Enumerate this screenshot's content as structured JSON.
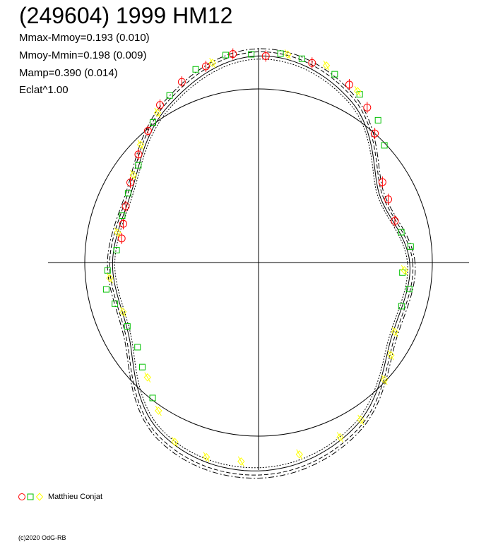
{
  "title": "(249604) 1999 HM12",
  "stats": [
    "Mmax-Mmoy=0.193 (0.010)",
    "Mmoy-Mmin=0.198 (0.009)",
    "Mamp=0.390 (0.014)",
    "Eclat^1.00"
  ],
  "legend": {
    "label": "Matthieu Conjat"
  },
  "copyright": "(c)2020 OdG-RB",
  "colors": {
    "circle": "#ff0000",
    "square": "#00c000",
    "diamond": "#ffff00",
    "curve": "#000000"
  },
  "chart_data": {
    "type": "scatter",
    "polar": true,
    "reference_circle_radius": 1.0,
    "markers": [
      "circle",
      "square",
      "diamond"
    ],
    "grid": false,
    "legend_position": "bottom-left",
    "fit_curve": {
      "angle_deg": [
        0,
        30,
        60,
        90,
        120,
        150,
        180,
        210,
        240,
        270,
        300,
        330
      ],
      "radius": [
        0.87,
        0.8,
        1.07,
        1.19,
        1.04,
        0.84,
        0.84,
        0.86,
        1.13,
        1.2,
        1.1,
        0.88
      ]
    },
    "points": [
      {
        "a": 88,
        "r": 1.19,
        "m": "circle"
      },
      {
        "a": 97,
        "r": 1.21,
        "m": "circle"
      },
      {
        "a": 105,
        "r": 1.17,
        "m": "circle"
      },
      {
        "a": 113,
        "r": 1.13,
        "m": "circle"
      },
      {
        "a": 122,
        "r": 1.07,
        "m": "circle"
      },
      {
        "a": 130,
        "r": 0.99,
        "m": "circle"
      },
      {
        "a": 138,
        "r": 0.93,
        "m": "circle"
      },
      {
        "a": 148,
        "r": 0.87,
        "m": "circle"
      },
      {
        "a": 157,
        "r": 0.83,
        "m": "circle"
      },
      {
        "a": 164,
        "r": 0.81,
        "m": "circle"
      },
      {
        "a": 170,
        "r": 0.8,
        "m": "circle"
      },
      {
        "a": 75,
        "r": 1.19,
        "m": "circle"
      },
      {
        "a": 63,
        "r": 1.15,
        "m": "circle"
      },
      {
        "a": 55,
        "r": 1.09,
        "m": "circle"
      },
      {
        "a": 48,
        "r": 1.0,
        "m": "circle"
      },
      {
        "a": 33,
        "r": 0.85,
        "m": "circle"
      },
      {
        "a": 26,
        "r": 0.83,
        "m": "circle"
      },
      {
        "a": 17,
        "r": 0.82,
        "m": "circle"
      },
      {
        "a": 84,
        "r": 1.21,
        "m": "square"
      },
      {
        "a": 92,
        "r": 1.2,
        "m": "square"
      },
      {
        "a": 99,
        "r": 1.21,
        "m": "square"
      },
      {
        "a": 108,
        "r": 1.17,
        "m": "square"
      },
      {
        "a": 118,
        "r": 1.09,
        "m": "square"
      },
      {
        "a": 127,
        "r": 1.01,
        "m": "square"
      },
      {
        "a": 141,
        "r": 0.89,
        "m": "square"
      },
      {
        "a": 152,
        "r": 0.85,
        "m": "square"
      },
      {
        "a": 161,
        "r": 0.83,
        "m": "square"
      },
      {
        "a": 175,
        "r": 0.82,
        "m": "square"
      },
      {
        "a": 183,
        "r": 0.87,
        "m": "square"
      },
      {
        "a": 190,
        "r": 0.89,
        "m": "square"
      },
      {
        "a": 196,
        "r": 0.86,
        "m": "square"
      },
      {
        "a": 206,
        "r": 0.84,
        "m": "square"
      },
      {
        "a": 215,
        "r": 0.85,
        "m": "square"
      },
      {
        "a": 222,
        "r": 0.9,
        "m": "square"
      },
      {
        "a": 232,
        "r": 0.99,
        "m": "square"
      },
      {
        "a": 78,
        "r": 1.2,
        "m": "square"
      },
      {
        "a": 68,
        "r": 1.17,
        "m": "square"
      },
      {
        "a": 59,
        "r": 1.13,
        "m": "square"
      },
      {
        "a": 50,
        "r": 1.07,
        "m": "square"
      },
      {
        "a": 43,
        "r": 0.99,
        "m": "square"
      },
      {
        "a": 12,
        "r": 0.84,
        "m": "square"
      },
      {
        "a": 6,
        "r": 0.88,
        "m": "square"
      },
      {
        "a": -4,
        "r": 0.83,
        "m": "square"
      },
      {
        "a": -10,
        "r": 0.88,
        "m": "square"
      },
      {
        "a": -17,
        "r": 0.86,
        "m": "square"
      },
      {
        "a": 82,
        "r": 1.21,
        "m": "diamond"
      },
      {
        "a": 103,
        "r": 1.18,
        "m": "diamond"
      },
      {
        "a": 124,
        "r": 1.04,
        "m": "diamond"
      },
      {
        "a": 135,
        "r": 0.96,
        "m": "diamond"
      },
      {
        "a": 145,
        "r": 0.88,
        "m": "diamond"
      },
      {
        "a": 168,
        "r": 0.83,
        "m": "diamond"
      },
      {
        "a": 186,
        "r": 0.86,
        "m": "diamond"
      },
      {
        "a": 200,
        "r": 0.83,
        "m": "diamond"
      },
      {
        "a": 226,
        "r": 0.92,
        "m": "diamond"
      },
      {
        "a": 236,
        "r": 1.03,
        "m": "diamond"
      },
      {
        "a": 245,
        "r": 1.14,
        "m": "diamond"
      },
      {
        "a": 255,
        "r": 1.16,
        "m": "diamond"
      },
      {
        "a": 265,
        "r": 1.15,
        "m": "diamond"
      },
      {
        "a": 282,
        "r": 1.13,
        "m": "diamond"
      },
      {
        "a": 295,
        "r": 1.11,
        "m": "diamond"
      },
      {
        "a": 303,
        "r": 1.08,
        "m": "diamond"
      },
      {
        "a": 317,
        "r": 0.99,
        "m": "diamond"
      },
      {
        "a": 325,
        "r": 0.93,
        "m": "diamond"
      },
      {
        "a": 333,
        "r": 0.88,
        "m": "diamond"
      },
      {
        "a": 71,
        "r": 1.2,
        "m": "diamond"
      },
      {
        "a": 60,
        "r": 1.14,
        "m": "diamond"
      },
      {
        "a": -3,
        "r": 0.84,
        "m": "diamond"
      }
    ]
  }
}
